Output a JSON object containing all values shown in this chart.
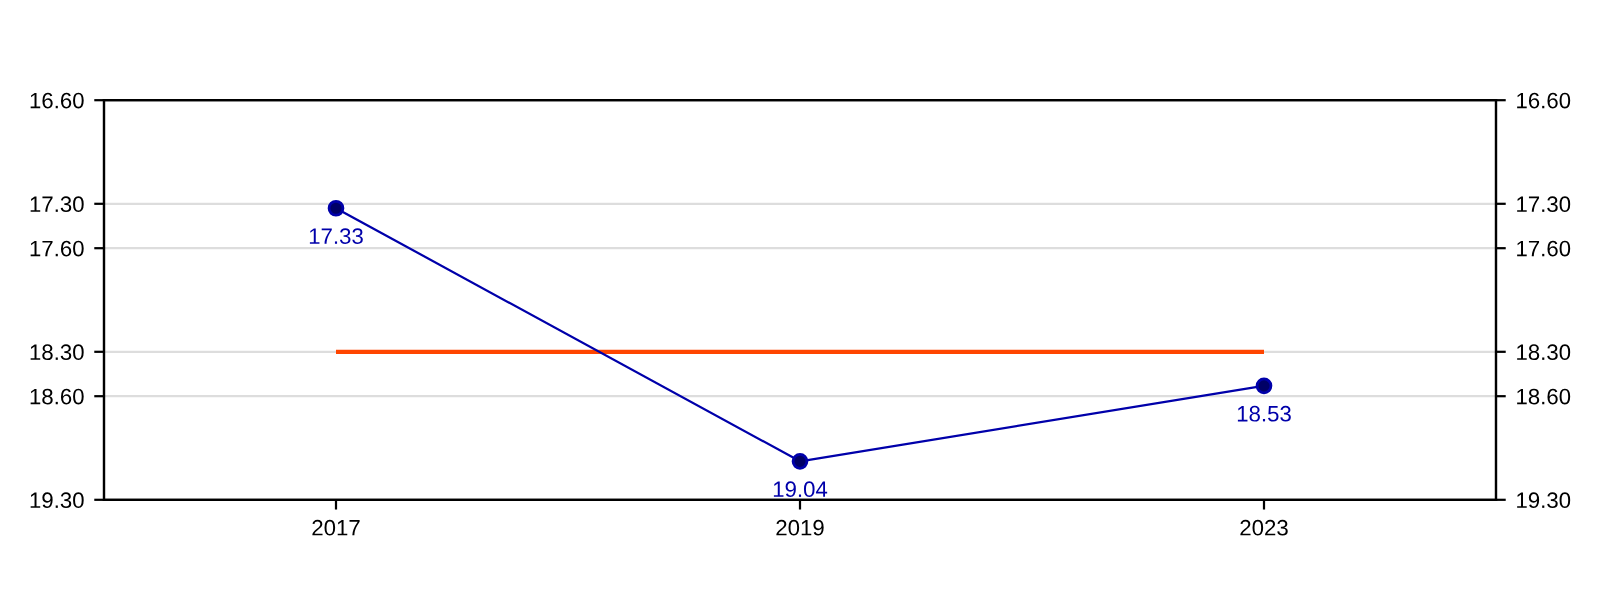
{
  "chart_data": {
    "type": "line",
    "categories": [
      "2017",
      "2019",
      "2023"
    ],
    "series": [
      {
        "color": "#0000aa",
        "values": [
          17.33,
          19.04,
          18.53
        ]
      }
    ],
    "marker": "circle",
    "line_style": "solid",
    "data_labels": true,
    "ylim": [
      19.3,
      16.6
    ],
    "yticks": [
      {
        "value": 16.6,
        "label": "16.60"
      },
      {
        "value": 17.3,
        "label": "17.30"
      },
      {
        "value": 17.6,
        "label": "17.60"
      },
      {
        "value": 18.3,
        "label": "18.30"
      },
      {
        "value": 18.6,
        "label": "18.60"
      },
      {
        "value": 19.3,
        "label": "19.30"
      }
    ],
    "y2lim": [
      19.3,
      16.6
    ],
    "y2ticks": [
      {
        "value": 16.6,
        "label": "16.60"
      },
      {
        "value": 17.3,
        "label": "17.30"
      },
      {
        "value": 17.6,
        "label": "17.60"
      },
      {
        "value": 18.3,
        "label": "18.30"
      },
      {
        "value": 18.6,
        "label": "18.60"
      },
      {
        "value": 19.3,
        "label": "19.30"
      }
    ],
    "ref_lines": [
      {
        "axis": "y",
        "value": 18.3,
        "color": "#ff4500"
      }
    ],
    "grid": "y"
  }
}
